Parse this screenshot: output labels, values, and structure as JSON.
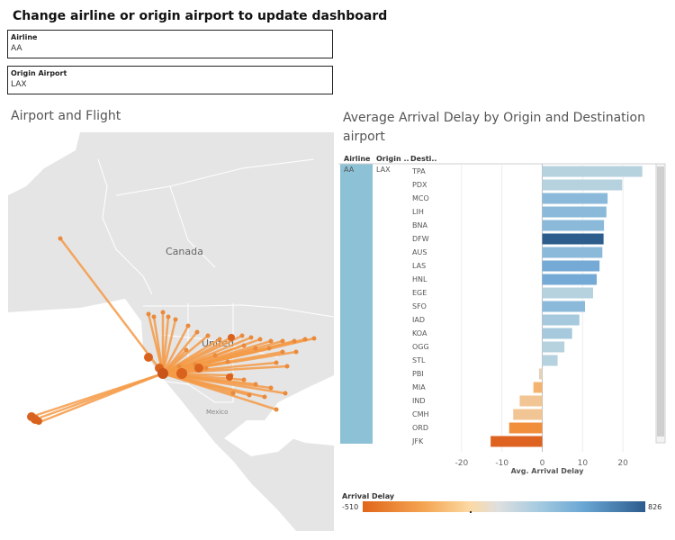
{
  "dashboard": {
    "title": "Change airline or origin airport  to update dashboard"
  },
  "filters": {
    "airline": {
      "label": "Airline",
      "value": "AA"
    },
    "origin": {
      "label": "Origin Airport",
      "value": "LAX"
    }
  },
  "map": {
    "title": "Airport and Flight",
    "labels": {
      "canada": "Canada",
      "mexico": "Mexico",
      "us": "United"
    },
    "colors": {
      "route": "#f59b47",
      "airport": "#d9621e",
      "water": "#ffffff",
      "land": "#e5e5e5"
    }
  },
  "chart": {
    "title": "Average Arrival Delay by Origin and Destination airport",
    "headers": {
      "airline": "Airline",
      "origin": "Origin ..",
      "destination": "Desti.."
    },
    "airline": "AA",
    "origin": "LAX"
  },
  "legend": {
    "title": "Arrival Delay",
    "min": "-510",
    "max": "826",
    "colors": {
      "negative": "#e1661a",
      "neutral": "#dedfdf",
      "positive": "#2c5b8d"
    }
  },
  "chart_data": {
    "type": "bar",
    "orientation": "horizontal",
    "categories": [
      "TPA",
      "PDX",
      "MCO",
      "LIH",
      "BNA",
      "DFW",
      "AUS",
      "LAS",
      "HNL",
      "EGE",
      "SFO",
      "IAD",
      "KOA",
      "OGG",
      "STL",
      "PBI",
      "MIA",
      "IND",
      "CMH",
      "ORD",
      "JFK"
    ],
    "values": [
      24.8,
      19.8,
      16.2,
      15.9,
      15.3,
      15.2,
      14.9,
      14.2,
      13.5,
      12.6,
      10.6,
      9.2,
      7.4,
      5.5,
      3.8,
      -0.8,
      -2.2,
      -5.6,
      -7.2,
      -8.2,
      -12.8
    ],
    "bar_colors": [
      "#b6d2df",
      "#b6d2df",
      "#8ab9da",
      "#8ab9da",
      "#8ab9da",
      "#2d5d8c",
      "#8ab9da",
      "#74aad5",
      "#74aad5",
      "#b6d2df",
      "#8ab9da",
      "#a6c9de",
      "#a6c9de",
      "#b6d2df",
      "#b6d2df",
      "#e4d3bb",
      "#f4b46f",
      "#f1c594",
      "#f1c594",
      "#f08e3b",
      "#de6220"
    ],
    "xlabel": "Avg. Arrival Delay",
    "ylabel": "",
    "xlim": [
      -26,
      28
    ],
    "xticks": [
      -20,
      -10,
      0,
      10,
      20
    ],
    "grid": true,
    "legend": "bottom"
  }
}
